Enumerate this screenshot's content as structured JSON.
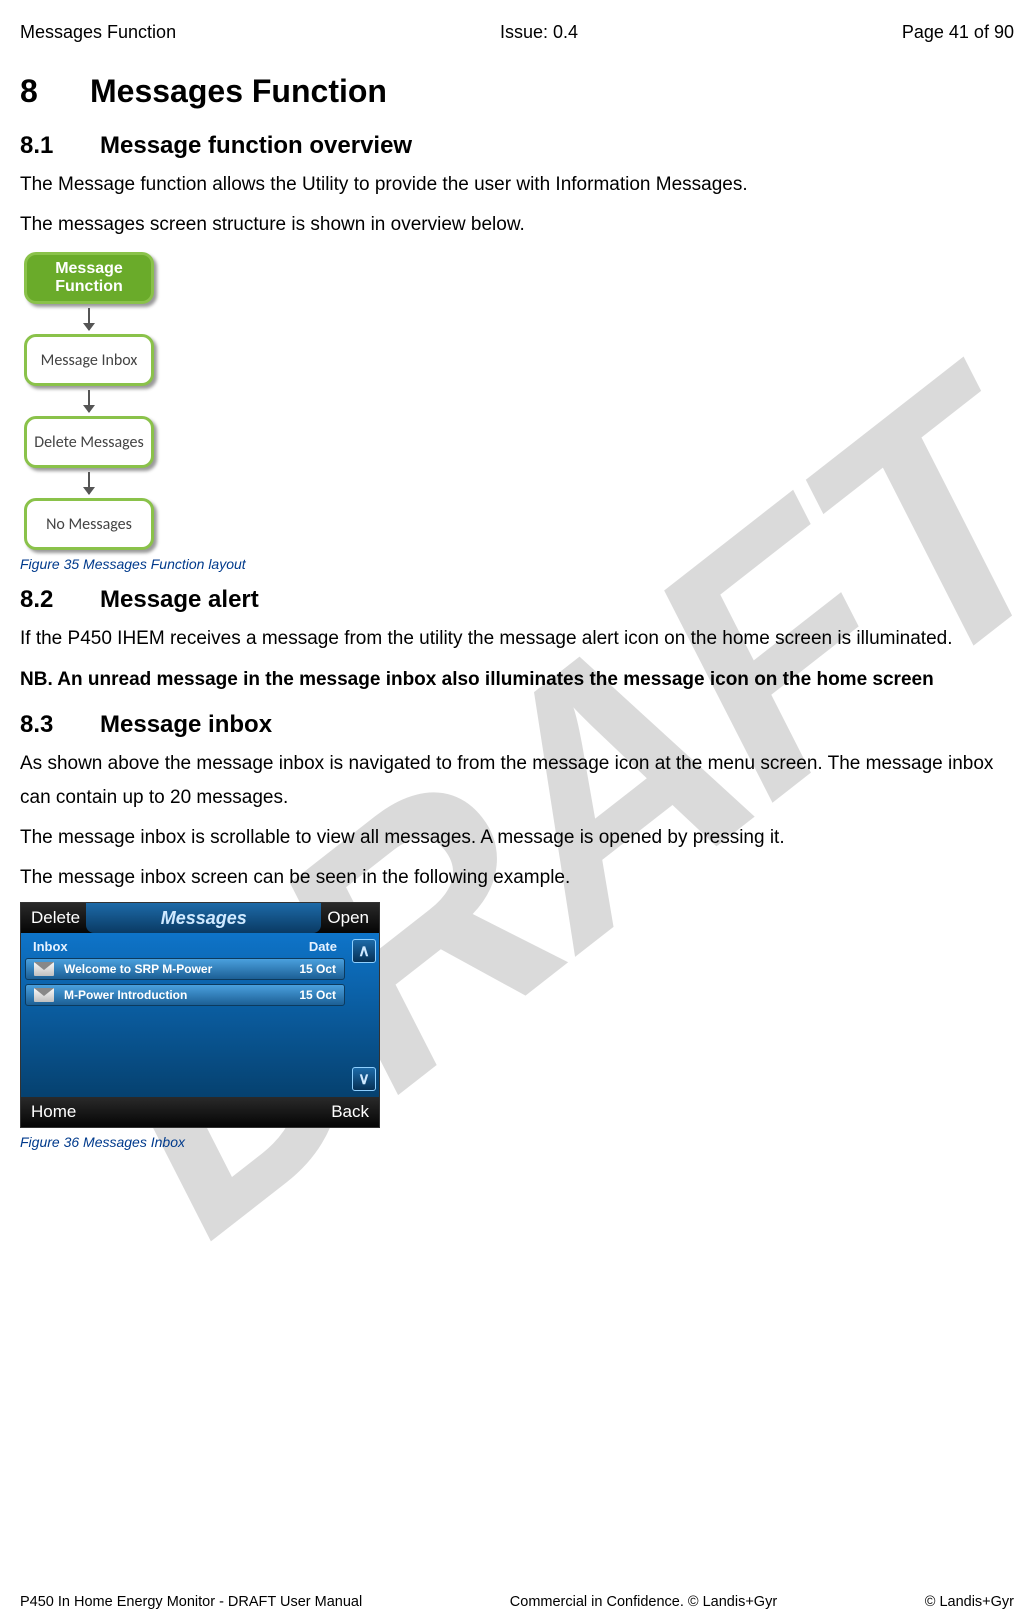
{
  "header": {
    "left": "Messages Function",
    "center": "Issue: 0.4",
    "right": "Page 41 of 90"
  },
  "watermark": "DRAFT",
  "h1": {
    "num": "8",
    "title": "Messages Function"
  },
  "s81": {
    "num": "8.1",
    "title": "Message function overview",
    "p1": "The Message function allows the Utility to provide the user with Information Messages.",
    "p2": "The messages screen structure is shown in overview below."
  },
  "flow": {
    "nodes": [
      "Message Function",
      "Message Inbox",
      "Delete Messages",
      "No Messages"
    ],
    "node_colors": {
      "solid_bg": "#6aab2a",
      "solid_border": "#8ac24a",
      "outline_border": "#8ac24a",
      "outline_bg": "#ffffff"
    }
  },
  "fig35": "Figure 35 Messages Function layout",
  "s82": {
    "num": "8.2",
    "title": "Message alert",
    "p1": "If the P450 IHEM receives a message from the utility the message alert icon on the home screen is illuminated.",
    "nb": "NB. An unread message in the message inbox also illuminates the message icon on the home screen"
  },
  "s83": {
    "num": "8.3",
    "title": "Message inbox",
    "p1": "As shown above the message inbox is navigated to from the message icon at the menu screen. The message inbox can contain up to 20 messages.",
    "p2": "The message inbox is scrollable to view all messages. A message is opened by pressing it.",
    "p3": "The message inbox screen can be seen in the following example."
  },
  "device": {
    "top_left": "Delete",
    "top_title": "Messages",
    "top_right": "Open",
    "col_left": "Inbox",
    "col_right": "Date",
    "rows": [
      {
        "subject": "Welcome to SRP M-Power",
        "date": "15 Oct"
      },
      {
        "subject": "M-Power Introduction",
        "date": "15 Oct"
      }
    ],
    "scroll_up": "∧",
    "scroll_down": "∨",
    "bottom_left": "Home",
    "bottom_right": "Back"
  },
  "fig36": "Figure 36 Messages Inbox",
  "footer": {
    "left": "P450 In Home Energy Monitor - DRAFT User Manual",
    "center": "Commercial in Confidence. © Landis+Gyr",
    "right": "© Landis+Gyr"
  }
}
